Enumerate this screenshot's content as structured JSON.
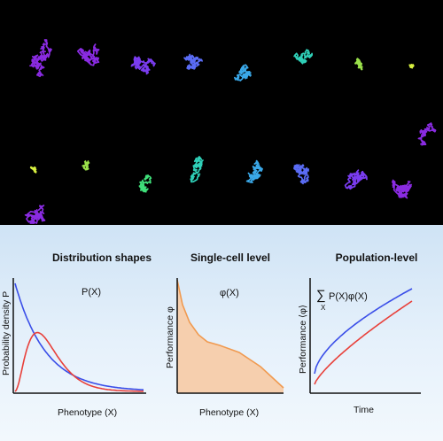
{
  "top_panel": {
    "trajectory_colors": [
      "#8a2be2",
      "#7a3cf0",
      "#5a6cf5",
      "#3aa8e8",
      "#2fd0b8",
      "#3fe07a",
      "#9ae04a",
      "#d8f040"
    ]
  },
  "panel_1": {
    "title": "Distribution shapes",
    "ylabel": "Probability density P",
    "xlabel": "Phenotype (X)",
    "curve_label": "P(X)",
    "series_colors": {
      "narrow": "#e8403a",
      "broad": "#3a4ee8"
    }
  },
  "panel_2": {
    "title": "Single-cell level",
    "ylabel": "Performance φ",
    "xlabel": "Phenotype (X)",
    "curve_label": "φ(X)",
    "fill_color": "#f6cfae",
    "line_color": "#f09a50"
  },
  "panel_3": {
    "title": "Population-level",
    "ylabel": "Performance ⟨φ⟩",
    "xlabel": "Time",
    "sum_symbol": "∑",
    "sum_sub": "X",
    "sum_expr": "P(X)φ(X)",
    "series_colors": {
      "upper": "#3a4ee8",
      "lower": "#e8403a"
    }
  }
}
